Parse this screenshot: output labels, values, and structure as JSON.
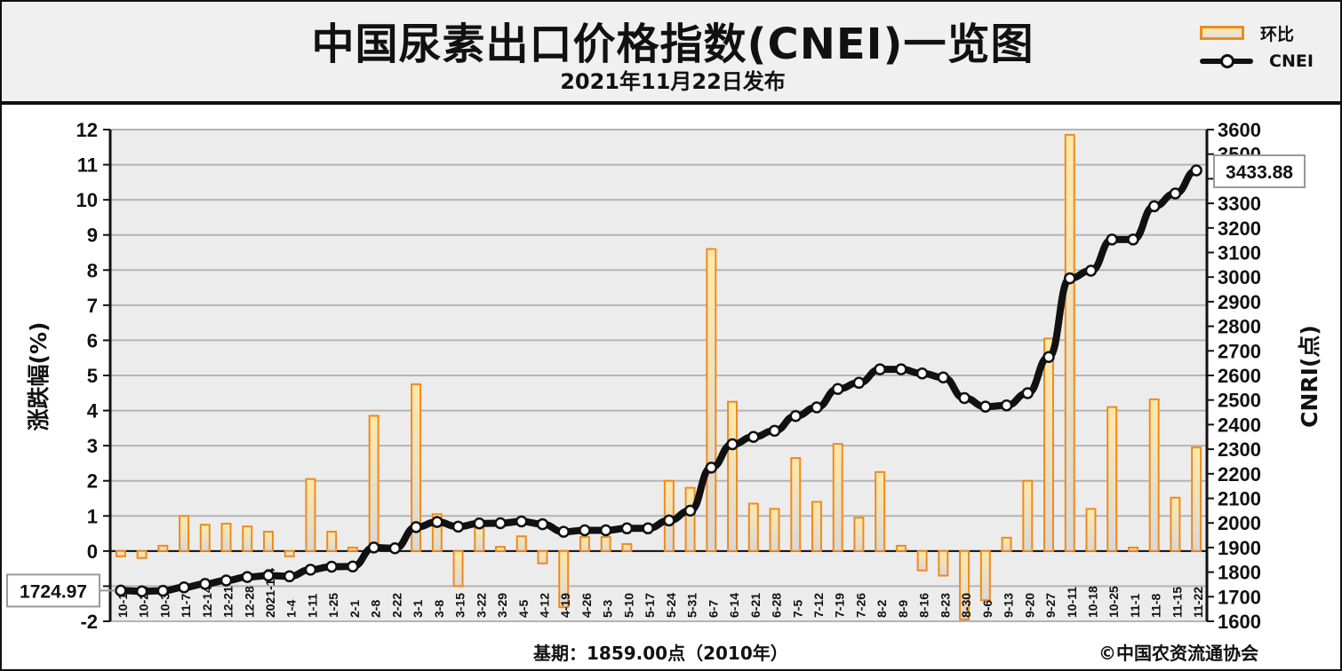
{
  "title": "中国尿素出口价格指数(CNEI)一览图",
  "subtitle": "2021年11月22日发布",
  "legend": {
    "bar_label": "环比",
    "line_label": "CNEI"
  },
  "footer": {
    "base_period": "基期：1859.00点（2010年）",
    "copyright": "©中国农资流通协会"
  },
  "colors": {
    "bar_border": "#f08a1c",
    "bar_top": "#ffe9a8",
    "bar_bottom": "#d8d8d8",
    "line": "#111111",
    "grid": "#b4b4b4",
    "plot_bg": "#ececec"
  },
  "chart_data": {
    "type": "bar+line",
    "ylabel_left": "涨跌幅(%)",
    "ylabel_right": "CNRI(点)",
    "ylim_left": [
      -2,
      12
    ],
    "ylim_right": [
      1600,
      3600
    ],
    "yticks_left": [
      "-2",
      "-1",
      "0",
      "1",
      "2",
      "3",
      "4",
      "5",
      "6",
      "7",
      "8",
      "9",
      "10",
      "11",
      "12"
    ],
    "yticks_right": [
      "1600",
      "1700",
      "1800",
      "1900",
      "2000",
      "2100",
      "2200",
      "2300",
      "2400",
      "2500",
      "2600",
      "2700",
      "2800",
      "2900",
      "3000",
      "3100",
      "3200",
      "3300",
      "3400",
      "3500",
      "3600"
    ],
    "grid": true,
    "categories": [
      "10-16",
      "10-23",
      "10-30",
      "11-7",
      "12-14",
      "12-21",
      "12-28",
      "2021-1-4",
      "1-4",
      "1-11",
      "1-25",
      "2-1",
      "2-8",
      "2-22",
      "3-1",
      "3-8",
      "3-15",
      "3-22",
      "3-29",
      "4-5",
      "4-12",
      "4-19",
      "4-26",
      "5-3",
      "5-10",
      "5-17",
      "5-24",
      "5-31",
      "6-7",
      "6-14",
      "6-21",
      "6-28",
      "7-5",
      "7-12",
      "7-19",
      "7-26",
      "8-2",
      "8-9",
      "8-16",
      "8-23",
      "8-30",
      "9-6",
      "9-13",
      "9-20",
      "9-27",
      "10-11",
      "10-18",
      "10-25",
      "11-1",
      "11-8",
      "11-15",
      "11-22"
    ],
    "series": [
      {
        "name": "环比",
        "type": "bar",
        "values": [
          -0.15,
          -0.2,
          0.15,
          1.0,
          0.75,
          0.78,
          0.7,
          0.55,
          -0.15,
          2.05,
          0.55,
          0.1,
          3.85,
          0.0,
          4.75,
          1.05,
          -1.0,
          0.7,
          0.12,
          0.42,
          -0.35,
          -1.6,
          0.4,
          0.4,
          0.2,
          0.0,
          2.0,
          1.8,
          8.6,
          4.25,
          1.35,
          1.2,
          2.65,
          1.4,
          3.05,
          0.95,
          2.25,
          0.15,
          -0.55,
          -0.7,
          -1.95,
          -1.4,
          0.38,
          2.0,
          6.05,
          11.85,
          1.2,
          4.1,
          0.1,
          4.32,
          1.52,
          2.95
        ]
      },
      {
        "name": "CNEI",
        "type": "line",
        "values": [
          1724.97,
          1722,
          1724,
          1738,
          1752,
          1766,
          1780,
          1786,
          1783,
          1810,
          1822,
          1823,
          1900,
          1897,
          1983,
          2004,
          1985,
          1998,
          1999,
          2006,
          1995,
          1964,
          1970,
          1970,
          1978,
          1978,
          2010,
          2050,
          2225,
          2320,
          2350,
          2375,
          2435,
          2470,
          2545,
          2570,
          2625,
          2625,
          2608,
          2592,
          2508,
          2473,
          2478,
          2528,
          2675,
          2995,
          3026,
          3153,
          3153,
          3288,
          3340,
          3433.88
        ]
      }
    ],
    "annotations": {
      "start_value_label": "1724.97",
      "end_value_label": "3433.88"
    }
  }
}
